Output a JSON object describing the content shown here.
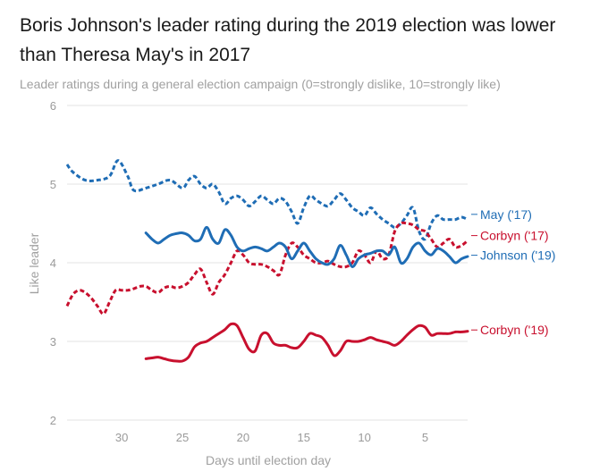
{
  "chart_data": {
    "type": "line",
    "title": "Boris Johnson's leader rating during the 2019 election was lower than Theresa May's in 2017",
    "subtitle": "Leader ratings during a general election campaign (0=strongly dislike, 10=strongly like)",
    "xlabel": "Days until election day",
    "ylabel": "Like leader",
    "xlim": [
      34.5,
      1.5
    ],
    "ylim": [
      2,
      6
    ],
    "xticks": [
      30,
      25,
      20,
      15,
      10,
      5
    ],
    "yticks": [
      2,
      3,
      4,
      5,
      6
    ],
    "grid": "horizontal",
    "series": [
      {
        "name": "May ('17)",
        "color": "#1f6db5",
        "dashed": true,
        "x": [
          34.5,
          34,
          33,
          32,
          31,
          30.3,
          29.5,
          29,
          28,
          27,
          26,
          25,
          24.5,
          24,
          23.5,
          23,
          22.5,
          22,
          21.5,
          21,
          20.5,
          20,
          19.5,
          19,
          18.5,
          18,
          17.5,
          17,
          16.5,
          16,
          15.5,
          15,
          14.5,
          14,
          13.5,
          13,
          12.5,
          12,
          11.5,
          11,
          10.5,
          10,
          9.5,
          9,
          8.5,
          8,
          7.5,
          7,
          6.5,
          6,
          5.5,
          5,
          4.5,
          4,
          3.5,
          3,
          2.5,
          2,
          1.5
        ],
        "values": [
          5.25,
          5.15,
          5.05,
          5.05,
          5.1,
          5.3,
          5.1,
          4.92,
          4.95,
          5.0,
          5.05,
          4.95,
          5.05,
          5.1,
          5.0,
          4.95,
          5.0,
          4.9,
          4.75,
          4.82,
          4.85,
          4.8,
          4.72,
          4.78,
          4.85,
          4.8,
          4.75,
          4.82,
          4.78,
          4.65,
          4.5,
          4.7,
          4.85,
          4.8,
          4.75,
          4.72,
          4.8,
          4.88,
          4.8,
          4.7,
          4.65,
          4.6,
          4.7,
          4.62,
          4.55,
          4.5,
          4.45,
          4.5,
          4.6,
          4.7,
          4.4,
          4.3,
          4.5,
          4.6,
          4.55,
          4.55,
          4.55,
          4.58,
          4.55
        ]
      },
      {
        "name": "Corbyn ('17)",
        "color": "#c8102e",
        "dashed": true,
        "x": [
          34.5,
          34,
          33.5,
          33,
          32.5,
          32,
          31.5,
          31,
          30.5,
          30,
          29.5,
          29,
          28.5,
          28,
          27.5,
          27,
          26.5,
          26,
          25.5,
          25,
          24.5,
          24,
          23.5,
          23,
          22.5,
          22,
          21.5,
          21,
          20.5,
          20,
          19.5,
          19,
          18.5,
          18,
          17.5,
          17,
          16.5,
          16,
          15.5,
          15,
          14.5,
          14,
          13.5,
          13,
          12.5,
          12,
          11.5,
          11,
          10.5,
          10,
          9.5,
          9,
          8.5,
          8,
          7.5,
          7,
          6.5,
          6,
          5.5,
          5,
          4.5,
          4,
          3.5,
          3,
          2.5,
          2,
          1.5
        ],
        "values": [
          3.45,
          3.6,
          3.65,
          3.62,
          3.55,
          3.45,
          3.35,
          3.5,
          3.65,
          3.65,
          3.65,
          3.67,
          3.7,
          3.7,
          3.65,
          3.62,
          3.68,
          3.7,
          3.68,
          3.7,
          3.75,
          3.85,
          3.92,
          3.75,
          3.6,
          3.75,
          3.85,
          4.0,
          4.15,
          4.1,
          4.0,
          3.98,
          3.98,
          3.95,
          3.9,
          3.85,
          4.1,
          4.25,
          4.2,
          4.1,
          4.05,
          4.0,
          4.0,
          4.02,
          3.98,
          3.95,
          3.95,
          4.0,
          4.15,
          4.1,
          4.0,
          4.15,
          4.05,
          4.1,
          4.4,
          4.5,
          4.5,
          4.48,
          4.42,
          4.4,
          4.3,
          4.2,
          4.25,
          4.3,
          4.2,
          4.22,
          4.28
        ]
      },
      {
        "name": "Johnson ('19)",
        "color": "#1f6db5",
        "dashed": false,
        "x": [
          28,
          27.5,
          27,
          26.5,
          26,
          25.5,
          25,
          24.5,
          24,
          23.5,
          23,
          22.5,
          22,
          21.5,
          21,
          20.5,
          20,
          19.5,
          19,
          18.5,
          18,
          17.5,
          17,
          16.5,
          16,
          15.5,
          15,
          14.5,
          14,
          13.5,
          13,
          12.5,
          12,
          11.5,
          11,
          10.5,
          10,
          9.5,
          9,
          8.5,
          8,
          7.5,
          7,
          6.5,
          6,
          5.5,
          5,
          4.5,
          4,
          3.5,
          3,
          2.5,
          2,
          1.5
        ],
        "values": [
          4.38,
          4.3,
          4.25,
          4.3,
          4.35,
          4.37,
          4.38,
          4.35,
          4.28,
          4.3,
          4.45,
          4.3,
          4.25,
          4.42,
          4.35,
          4.2,
          4.15,
          4.18,
          4.2,
          4.18,
          4.15,
          4.2,
          4.25,
          4.2,
          4.05,
          4.15,
          4.25,
          4.15,
          4.05,
          4.0,
          3.98,
          4.05,
          4.22,
          4.1,
          3.95,
          4.05,
          4.1,
          4.12,
          4.15,
          4.15,
          4.1,
          4.2,
          4.0,
          4.05,
          4.2,
          4.25,
          4.15,
          4.1,
          4.18,
          4.15,
          4.08,
          4.0,
          4.05,
          4.08
        ]
      },
      {
        "name": "Corbyn ('19)",
        "color": "#c8102e",
        "dashed": false,
        "x": [
          28,
          27.5,
          27,
          26.5,
          26,
          25.5,
          25,
          24.5,
          24,
          23.5,
          23,
          22.5,
          22,
          21.5,
          21,
          20.5,
          20,
          19.5,
          19,
          18.5,
          18,
          17.5,
          17,
          16.5,
          16,
          15.5,
          15,
          14.5,
          14,
          13.5,
          13,
          12.5,
          12,
          11.5,
          11,
          10.5,
          10,
          9.5,
          9,
          8.5,
          8,
          7.5,
          7,
          6.5,
          6,
          5.5,
          5,
          4.5,
          4,
          3.5,
          3,
          2.5,
          2,
          1.5
        ],
        "values": [
          2.78,
          2.79,
          2.8,
          2.78,
          2.76,
          2.75,
          2.75,
          2.8,
          2.93,
          2.98,
          3.0,
          3.05,
          3.1,
          3.15,
          3.22,
          3.2,
          3.05,
          2.9,
          2.88,
          3.08,
          3.1,
          2.98,
          2.95,
          2.95,
          2.92,
          2.92,
          3.0,
          3.1,
          3.08,
          3.05,
          2.95,
          2.82,
          2.88,
          3.0,
          3.0,
          3.0,
          3.02,
          3.05,
          3.02,
          3.0,
          2.98,
          2.95,
          3.0,
          3.08,
          3.15,
          3.2,
          3.18,
          3.08,
          3.1,
          3.1,
          3.1,
          3.12,
          3.12,
          3.13
        ]
      }
    ],
    "labels": [
      {
        "text": "May ('17)",
        "series": 0,
        "y": 4.57
      },
      {
        "text": "Corbyn ('17)",
        "series": 1,
        "y": 4.3
      },
      {
        "text": "Johnson ('19)",
        "series": 2,
        "y": 4.05
      },
      {
        "text": "Corbyn ('19)",
        "series": 3,
        "y": 3.1
      }
    ]
  }
}
